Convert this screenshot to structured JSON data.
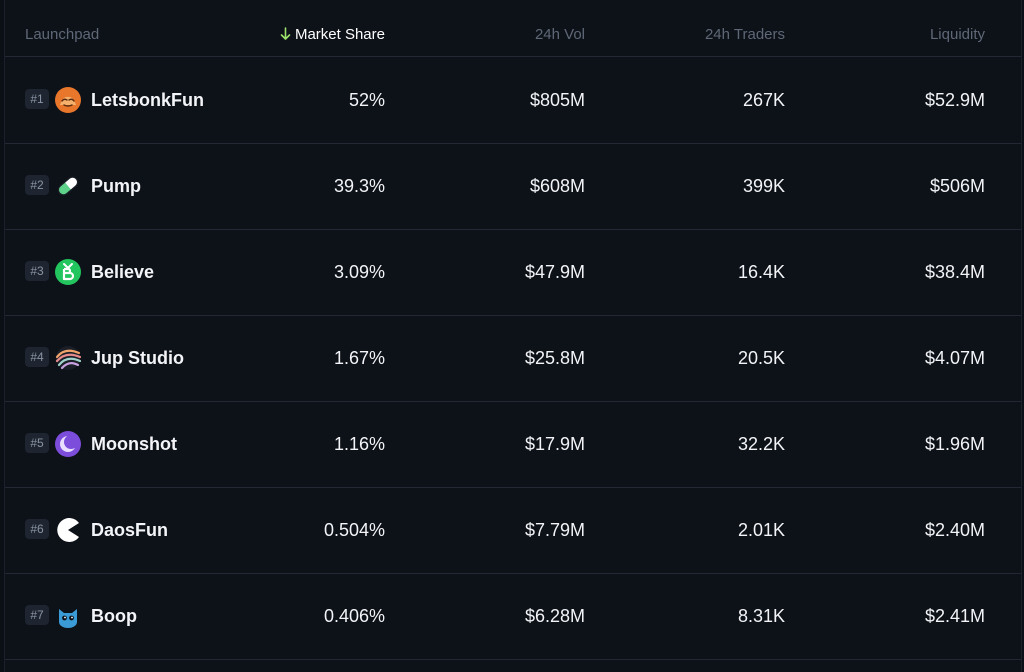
{
  "header": {
    "launchpad": "Launchpad",
    "market_share": "Market Share",
    "vol_24h": "24h Vol",
    "traders_24h": "24h Traders",
    "liquidity": "Liquidity",
    "sort_icon": "arrow-down-icon",
    "sort_arrow_color": "#9be26a"
  },
  "rows": [
    {
      "rank": "#1",
      "name": "LetsbonkFun",
      "share": "52%",
      "vol": "$805M",
      "traders": "267K",
      "liquidity": "$52.9M",
      "icon": "letsbonk-logo-icon",
      "color": "#e8762b"
    },
    {
      "rank": "#2",
      "name": "Pump",
      "share": "39.3%",
      "vol": "$608M",
      "traders": "399K",
      "liquidity": "$506M",
      "icon": "pill-logo-icon",
      "color": "#5ed18a"
    },
    {
      "rank": "#3",
      "name": "Believe",
      "share": "3.09%",
      "vol": "$47.9M",
      "traders": "16.4K",
      "liquidity": "$38.4M",
      "icon": "believe-logo-icon",
      "color": "#22c55e"
    },
    {
      "rank": "#4",
      "name": "Jup Studio",
      "share": "1.67%",
      "vol": "$25.8M",
      "traders": "20.5K",
      "liquidity": "$4.07M",
      "icon": "jupiter-logo-icon",
      "color": "#f0a36a"
    },
    {
      "rank": "#5",
      "name": "Moonshot",
      "share": "1.16%",
      "vol": "$17.9M",
      "traders": "32.2K",
      "liquidity": "$1.96M",
      "icon": "moon-logo-icon",
      "color": "#8b5cf6"
    },
    {
      "rank": "#6",
      "name": "DaosFun",
      "share": "0.504%",
      "vol": "$7.79M",
      "traders": "2.01K",
      "liquidity": "$2.40M",
      "icon": "pacman-logo-icon",
      "color": "#ffffff"
    },
    {
      "rank": "#7",
      "name": "Boop",
      "share": "0.406%",
      "vol": "$6.28M",
      "traders": "8.31K",
      "liquidity": "$2.41M",
      "icon": "cat-logo-icon",
      "color": "#3b9bd6"
    }
  ]
}
